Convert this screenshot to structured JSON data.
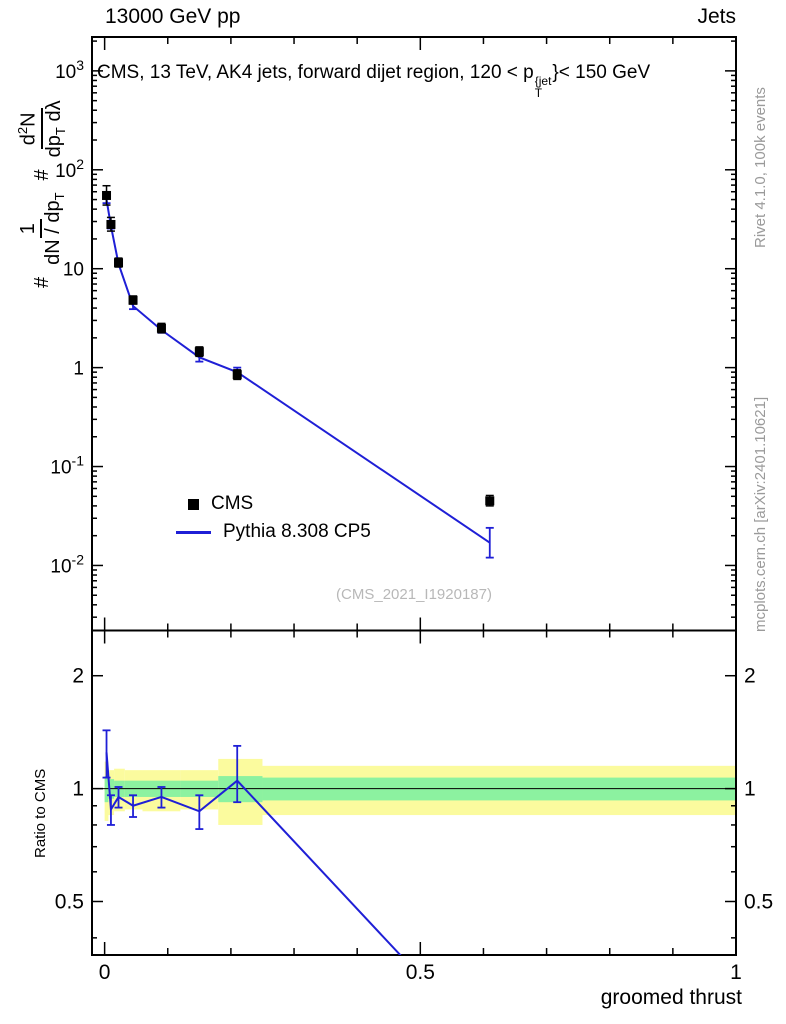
{
  "header": {
    "beam": "13000 GeV pp",
    "process": "Jets"
  },
  "title": {
    "pre": "CMS, 13 TeV, AK4 jets, forward dijet region, 120 < p",
    "sup": "{jet",
    "sub": "T",
    "post": "}< 150 GeV"
  },
  "ylabel_main": {
    "hash1": "#",
    "f1num": "1",
    "f1den": "dN / dp",
    "f1densub": "T",
    "hash2": "#",
    "f2numa": "d",
    "f2numexp": "2",
    "f2numb": "N",
    "f2dena": "dp",
    "f2densub": "T",
    "f2denb": " dλ"
  },
  "ylabel_ratio": "Ratio to CMS",
  "xlabel": "groomed thrust",
  "legend": {
    "cms": "CMS",
    "pythia": "Pythia 8.308 CP5"
  },
  "watermark": "(CMS_2021_I1920187)",
  "side_notes": {
    "top": "Rivet 4.1.0, 100k events",
    "bottom": "mcplots.cern.ch [arXiv:2401.10621]"
  },
  "colors": {
    "pythia": "#1f1fd6",
    "cms": "#000000",
    "band_yellow": "#fbfb9e",
    "band_green": "#8cf2a0",
    "watermark": "#b8b8b8",
    "side_note": "#9a9a9a"
  },
  "chart_data": {
    "type": "line",
    "title": "CMS, 13 TeV, AK4 jets, forward dijet region, 120 < pT{jet} < 150 GeV",
    "xlabel": "groomed thrust",
    "ylabel": "# 1/(dN/dpT) # d2N/(dpT dλ)",
    "ratio_label": "Ratio to CMS",
    "x_axis": {
      "min": -0.02,
      "max": 1.0,
      "major_ticks": [
        0,
        0.5,
        1
      ],
      "tick_labels": [
        "0",
        "0.5",
        "1"
      ],
      "minor_step": 0.1
    },
    "y_axis_main": {
      "scale": "log",
      "min": 0.0022,
      "max": 2200,
      "decades": [
        -2,
        -1,
        0,
        1,
        2,
        3
      ]
    },
    "y_axis_ratio": {
      "scale": "log",
      "min": 0.36,
      "max": 2.64,
      "ticks": [
        0.5,
        1,
        2
      ],
      "tick_labels": [
        "0.5",
        "1",
        "2"
      ],
      "minor_ticks": [
        0.4,
        0.6,
        0.7,
        0.8,
        0.9
      ]
    },
    "cms_points": {
      "x": [
        0.003,
        0.01,
        0.022,
        0.045,
        0.09,
        0.15,
        0.21,
        0.61
      ],
      "y": [
        55,
        28,
        11.5,
        4.8,
        2.5,
        1.45,
        0.85,
        0.045
      ],
      "ylo": [
        44,
        24,
        10.4,
        4.4,
        2.25,
        1.3,
        0.76,
        0.04
      ],
      "yhi": [
        69,
        33,
        12.8,
        5.3,
        2.8,
        1.62,
        0.95,
        0.051
      ]
    },
    "pythia_points": {
      "x": [
        0.003,
        0.01,
        0.022,
        0.045,
        0.09,
        0.15,
        0.21,
        0.61
      ],
      "y": [
        50,
        27,
        11.2,
        4.2,
        2.4,
        1.27,
        0.9,
        0.017
      ],
      "ylo": [
        46,
        25.5,
        10.6,
        3.9,
        2.25,
        1.15,
        0.8,
        0.012
      ],
      "yhi": [
        55,
        28.5,
        11.9,
        4.6,
        2.56,
        1.4,
        1.0,
        0.024
      ]
    },
    "ratio_points": {
      "x": [
        0.003,
        0.01,
        0.022,
        0.045,
        0.09,
        0.15,
        0.21,
        0.61
      ],
      "y": [
        1.25,
        0.88,
        0.95,
        0.9,
        0.95,
        0.87,
        1.05,
        0.2
      ],
      "ylo": [
        1.07,
        0.8,
        0.89,
        0.84,
        0.89,
        0.78,
        0.92,
        null
      ],
      "yhi": [
        1.43,
        0.96,
        1.01,
        0.96,
        1.01,
        0.96,
        1.3,
        null
      ]
    },
    "ratio_bands": [
      {
        "x0": 0.0,
        "x1": 0.006,
        "y_lo": 0.82,
        "y_hi": 1.18,
        "g_lo": 0.92,
        "g_hi": 1.08
      },
      {
        "x0": 0.006,
        "x1": 0.015,
        "y_lo": 0.85,
        "y_hi": 1.12,
        "g_lo": 0.94,
        "g_hi": 1.06
      },
      {
        "x0": 0.015,
        "x1": 0.032,
        "y_lo": 0.87,
        "y_hi": 1.13,
        "g_lo": 0.95,
        "g_hi": 1.05
      },
      {
        "x0": 0.032,
        "x1": 0.06,
        "y_lo": 0.88,
        "y_hi": 1.12,
        "g_lo": 0.95,
        "g_hi": 1.05
      },
      {
        "x0": 0.06,
        "x1": 0.12,
        "y_lo": 0.87,
        "y_hi": 1.12,
        "g_lo": 0.95,
        "g_hi": 1.05
      },
      {
        "x0": 0.12,
        "x1": 0.18,
        "y_lo": 0.88,
        "y_hi": 1.12,
        "g_lo": 0.95,
        "g_hi": 1.05
      },
      {
        "x0": 0.18,
        "x1": 0.25,
        "y_lo": 0.8,
        "y_hi": 1.2,
        "g_lo": 0.92,
        "g_hi": 1.08
      },
      {
        "x0": 0.25,
        "x1": 1.0,
        "y_lo": 0.85,
        "y_hi": 1.15,
        "g_lo": 0.93,
        "g_hi": 1.07
      }
    ]
  }
}
